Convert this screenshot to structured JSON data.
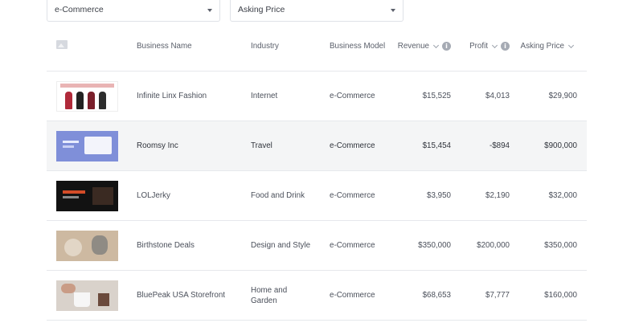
{
  "filters": {
    "model_select": "e-Commerce",
    "sort_select": "Asking Price"
  },
  "table": {
    "headers": {
      "business_name": "Business Name",
      "industry": "Industry",
      "business_model": "Business Model",
      "revenue": "Revenue",
      "profit": "Profit",
      "asking_price": "Asking Price"
    },
    "rows": [
      {
        "name": "Infinite Linx Fashion",
        "industry": "Internet",
        "model": "e-Commerce",
        "revenue": "$15,525",
        "profit": "$4,013",
        "asking": "$29,900"
      },
      {
        "name": "Roomsy Inc",
        "industry": "Travel",
        "model": "e-Commerce",
        "revenue": "$15,454",
        "profit": "-$894",
        "asking": "$900,000"
      },
      {
        "name": "LOLJerky",
        "industry": "Food and Drink",
        "model": "e-Commerce",
        "revenue": "$3,950",
        "profit": "$2,190",
        "asking": "$32,000"
      },
      {
        "name": "Birthstone Deals",
        "industry": "Design and Style",
        "model": "e-Commerce",
        "revenue": "$350,000",
        "profit": "$200,000",
        "asking": "$350,000"
      },
      {
        "name": "BluePeak USA Storefront",
        "industry": "Home and Garden",
        "model": "e-Commerce",
        "revenue": "$68,653",
        "profit": "$7,777",
        "asking": "$160,000"
      }
    ]
  },
  "icons": {
    "info": "i",
    "image_placeholder": "image-icon",
    "chevron": "chevron-down-icon"
  },
  "colors": {
    "highlight_row": "#f4f5f6",
    "border": "#e6e8ec",
    "text": "#4a4f5a"
  }
}
